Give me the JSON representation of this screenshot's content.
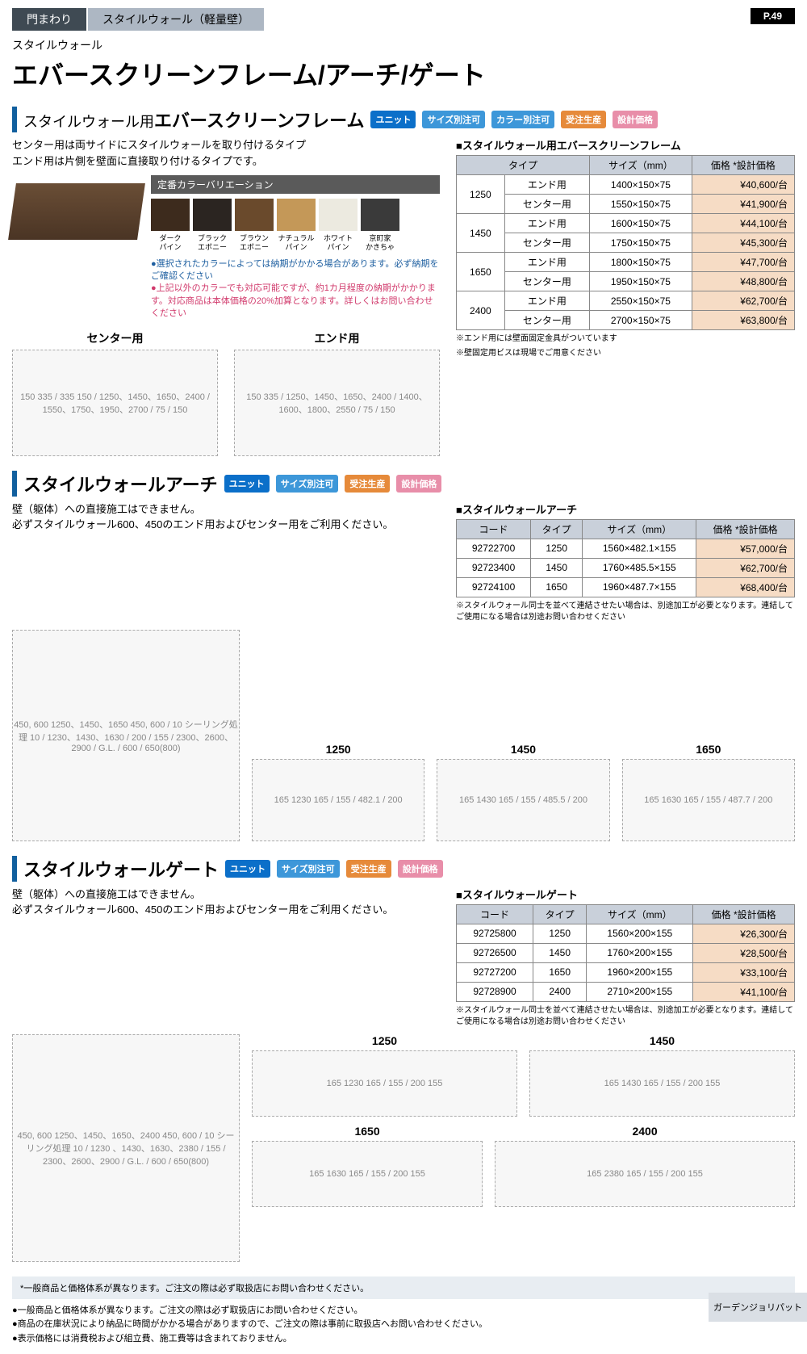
{
  "page_number": "P.49",
  "tabs": {
    "primary": "門まわり",
    "secondary": "スタイルウォール（軽量壁）"
  },
  "series": "スタイルウォール",
  "main_title": "エバースクリーンフレーム/アーチ/ゲート",
  "badges": {
    "unit": "ユニット",
    "size": "サイズ別注可",
    "color": "カラー別注可",
    "order": "受注生産",
    "price": "設計価格"
  },
  "section1": {
    "title_sub": "スタイルウォール用",
    "title_main": "エバースクリーンフレーム",
    "desc1": "センター用は両サイドにスタイルウォールを取り付けるタイプ",
    "desc2": "エンド用は片側を壁面に直接取り付けるタイプです。",
    "color_header": "定番カラーバリエーション",
    "swatches": [
      {
        "name1": "ダーク",
        "name2": "パイン",
        "color": "#3d2b1d"
      },
      {
        "name1": "ブラック",
        "name2": "エボニー",
        "color": "#2b2521"
      },
      {
        "name1": "ブラウン",
        "name2": "エボニー",
        "color": "#6a4a2c"
      },
      {
        "name1": "ナチュラル",
        "name2": "パイン",
        "color": "#c49858"
      },
      {
        "name1": "ホワイト",
        "name2": "パイン",
        "color": "#eceae0"
      },
      {
        "name1": "京町家",
        "name2": "かきちゃ",
        "color": "#3a3a3a"
      }
    ],
    "note_blue": "●選択されたカラーによっては納期がかかる場合があります。必ず納期をご確認ください",
    "note_pink": "●上記以外のカラーでも対応可能ですが、約1カ月程度の納期がかかります。対応商品は本体価格の20%加算となります。詳しくはお問い合わせください",
    "diagram_labels": {
      "center": "センター用",
      "end": "エンド用"
    },
    "diagram_dims_center": "150 335 / 335 150 / 1250、1450、1650、2400 / 1550、1750、1950、2700 / 75 / 150",
    "diagram_dims_end": "150 335 / 1250、1450、1650、2400 / 1400、1600、1800、2550 / 75 / 150",
    "table": {
      "caption": "■スタイルウォール用エバースクリーンフレーム",
      "headers": [
        "タイプ",
        "",
        "サイズ（mm）",
        "価格 *設計価格"
      ],
      "rows": [
        {
          "type": "1250",
          "sub": "エンド用",
          "size": "1400×150×75",
          "price": "¥40,600/台"
        },
        {
          "type": "",
          "sub": "センター用",
          "size": "1550×150×75",
          "price": "¥41,900/台"
        },
        {
          "type": "1450",
          "sub": "エンド用",
          "size": "1600×150×75",
          "price": "¥44,100/台"
        },
        {
          "type": "",
          "sub": "センター用",
          "size": "1750×150×75",
          "price": "¥45,300/台"
        },
        {
          "type": "1650",
          "sub": "エンド用",
          "size": "1800×150×75",
          "price": "¥47,700/台"
        },
        {
          "type": "",
          "sub": "センター用",
          "size": "1950×150×75",
          "price": "¥48,800/台"
        },
        {
          "type": "2400",
          "sub": "エンド用",
          "size": "2550×150×75",
          "price": "¥62,700/台"
        },
        {
          "type": "",
          "sub": "センター用",
          "size": "2700×150×75",
          "price": "¥63,800/台"
        }
      ],
      "note1": "※エンド用には壁面固定金具がついています",
      "note2": "※壁固定用ビスは現場でご用意ください"
    }
  },
  "section2": {
    "title": "スタイルウォールアーチ",
    "desc1": "壁（躯体）への直接施工はできません。",
    "desc2": "必ずスタイルウォール600、450のエンド用およびセンター用をご利用ください。",
    "diagram_left": "450, 600  1250、1450、1650  450, 600 / 10 シーリング処理 10 / 1230、1430、1630 / 200 / 155 / 2300、2600、2900 / G.L. / 600 / 650(800)",
    "diagram_sizes": {
      "1250": "165 1230 165 / 155 / 482.1 / 200",
      "1450": "165 1430 165 / 155 / 485.5 / 200",
      "1650": "165 1630 165 / 155 / 487.7 / 200"
    },
    "table": {
      "caption": "■スタイルウォールアーチ",
      "headers": [
        "コード",
        "タイプ",
        "サイズ（mm）",
        "価格 *設計価格"
      ],
      "rows": [
        {
          "code": "92722700",
          "type": "1250",
          "size": "1560×482.1×155",
          "price": "¥57,000/台"
        },
        {
          "code": "92723400",
          "type": "1450",
          "size": "1760×485.5×155",
          "price": "¥62,700/台"
        },
        {
          "code": "92724100",
          "type": "1650",
          "size": "1960×487.7×155",
          "price": "¥68,400/台"
        }
      ],
      "note": "※スタイルウォール同士を並べて連結させたい場合は、別途加工が必要となります。連結してご使用になる場合は別途お問い合わせください"
    }
  },
  "section3": {
    "title": "スタイルウォールゲート",
    "desc1": "壁（躯体）への直接施工はできません。",
    "desc2": "必ずスタイルウォール600、450のエンド用およびセンター用をご利用ください。",
    "diagram_left": "450, 600  1250、1450、1650、2400  450, 600 / 10 シーリング処理 10 / 1230 、1430、1630、2380 / 155 / 2300、2600、2900 / G.L. / 600 / 650(800)",
    "diagram_sizes": {
      "1250": "165 1230 165 / 155 / 200 155",
      "1450": "165 1430 165 / 155 / 200 155",
      "1650": "165 1630 165 / 155 / 200 155",
      "2400": "165 2380 165 / 155 / 200 155"
    },
    "table": {
      "caption": "■スタイルウォールゲート",
      "headers": [
        "コード",
        "タイプ",
        "サイズ（mm）",
        "価格 *設計価格"
      ],
      "rows": [
        {
          "code": "92725800",
          "type": "1250",
          "size": "1560×200×155",
          "price": "¥26,300/台"
        },
        {
          "code": "92726500",
          "type": "1450",
          "size": "1760×200×155",
          "price": "¥28,500/台"
        },
        {
          "code": "92727200",
          "type": "1650",
          "size": "1960×200×155",
          "price": "¥33,100/台"
        },
        {
          "code": "92728900",
          "type": "2400",
          "size": "2710×200×155",
          "price": "¥41,100/台"
        }
      ],
      "note": "※スタイルウォール同士を並べて連結させたい場合は、別途加工が必要となります。連結してご使用になる場合は別途お問い合わせください"
    }
  },
  "footer": {
    "boxed": "*一般商品と価格体系が異なります。ご注文の際は必ず取扱店にお問い合わせください。",
    "b1": "●一般商品と価格体系が異なります。ご注文の際は必ず取扱店にお問い合わせください。",
    "b2": "●商品の在庫状況により納品に時間がかかる場合がありますので、ご注文の際は事前に取扱店へお問い合わせください。",
    "b3": "●表示価格には消費税および組立費、施工費等は含まれておりません。",
    "side": "ガーデンジョリパット"
  }
}
